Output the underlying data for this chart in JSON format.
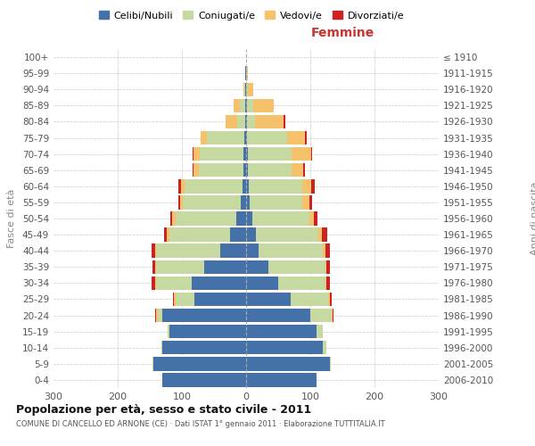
{
  "age_groups": [
    "0-4",
    "5-9",
    "10-14",
    "15-19",
    "20-24",
    "25-29",
    "30-34",
    "35-39",
    "40-44",
    "45-49",
    "50-54",
    "55-59",
    "60-64",
    "65-69",
    "70-74",
    "75-79",
    "80-84",
    "85-89",
    "90-94",
    "95-99",
    "100+"
  ],
  "birth_years": [
    "2006-2010",
    "2001-2005",
    "1996-2000",
    "1991-1995",
    "1986-1990",
    "1981-1985",
    "1976-1980",
    "1971-1975",
    "1966-1970",
    "1961-1965",
    "1956-1960",
    "1951-1955",
    "1946-1950",
    "1941-1945",
    "1936-1940",
    "1931-1935",
    "1926-1930",
    "1921-1925",
    "1916-1920",
    "1911-1915",
    "≤ 1910"
  ],
  "male_celibi": [
    130,
    145,
    130,
    120,
    130,
    80,
    85,
    65,
    40,
    25,
    15,
    8,
    6,
    4,
    4,
    3,
    2,
    2,
    1,
    1,
    0
  ],
  "male_coniugati": [
    0,
    1,
    2,
    2,
    8,
    30,
    55,
    75,
    100,
    95,
    95,
    90,
    90,
    70,
    68,
    58,
    12,
    8,
    2,
    0,
    0
  ],
  "male_vedovi": [
    0,
    0,
    0,
    0,
    2,
    2,
    2,
    2,
    2,
    4,
    5,
    5,
    5,
    8,
    10,
    10,
    18,
    10,
    1,
    0,
    0
  ],
  "male_divorziati": [
    0,
    0,
    0,
    0,
    2,
    2,
    5,
    4,
    5,
    4,
    3,
    3,
    5,
    2,
    2,
    0,
    0,
    0,
    0,
    0,
    0
  ],
  "female_nubili": [
    110,
    130,
    120,
    110,
    100,
    70,
    50,
    35,
    20,
    15,
    10,
    5,
    4,
    3,
    3,
    2,
    2,
    1,
    0,
    0,
    0
  ],
  "female_coniugate": [
    0,
    2,
    5,
    10,
    33,
    58,
    73,
    88,
    100,
    98,
    88,
    83,
    83,
    68,
    68,
    62,
    12,
    10,
    3,
    1,
    0
  ],
  "female_vedove": [
    0,
    0,
    0,
    0,
    2,
    2,
    2,
    2,
    3,
    5,
    8,
    10,
    15,
    18,
    30,
    28,
    45,
    32,
    8,
    2,
    0
  ],
  "female_divorziate": [
    0,
    0,
    0,
    0,
    1,
    3,
    5,
    5,
    8,
    8,
    5,
    5,
    5,
    2,
    2,
    2,
    2,
    0,
    0,
    0,
    0
  ],
  "color_celibi": "#4472a8",
  "color_coniugati": "#c6d9a0",
  "color_vedovi": "#f5c26b",
  "color_divorziati": "#cc2222",
  "xlim": 300,
  "title": "Popolazione per età, sesso e stato civile - 2011",
  "subtitle": "COMUNE DI CANCELLO ED ARNONE (CE) · Dati ISTAT 1° gennaio 2011 · Elaborazione TUTTITALIA.IT",
  "legend_labels": [
    "Celibi/Nubili",
    "Coniugati/e",
    "Vedovi/e",
    "Divorziati/e"
  ],
  "bg_color": "#ffffff",
  "grid_color": "#bbbbbb"
}
